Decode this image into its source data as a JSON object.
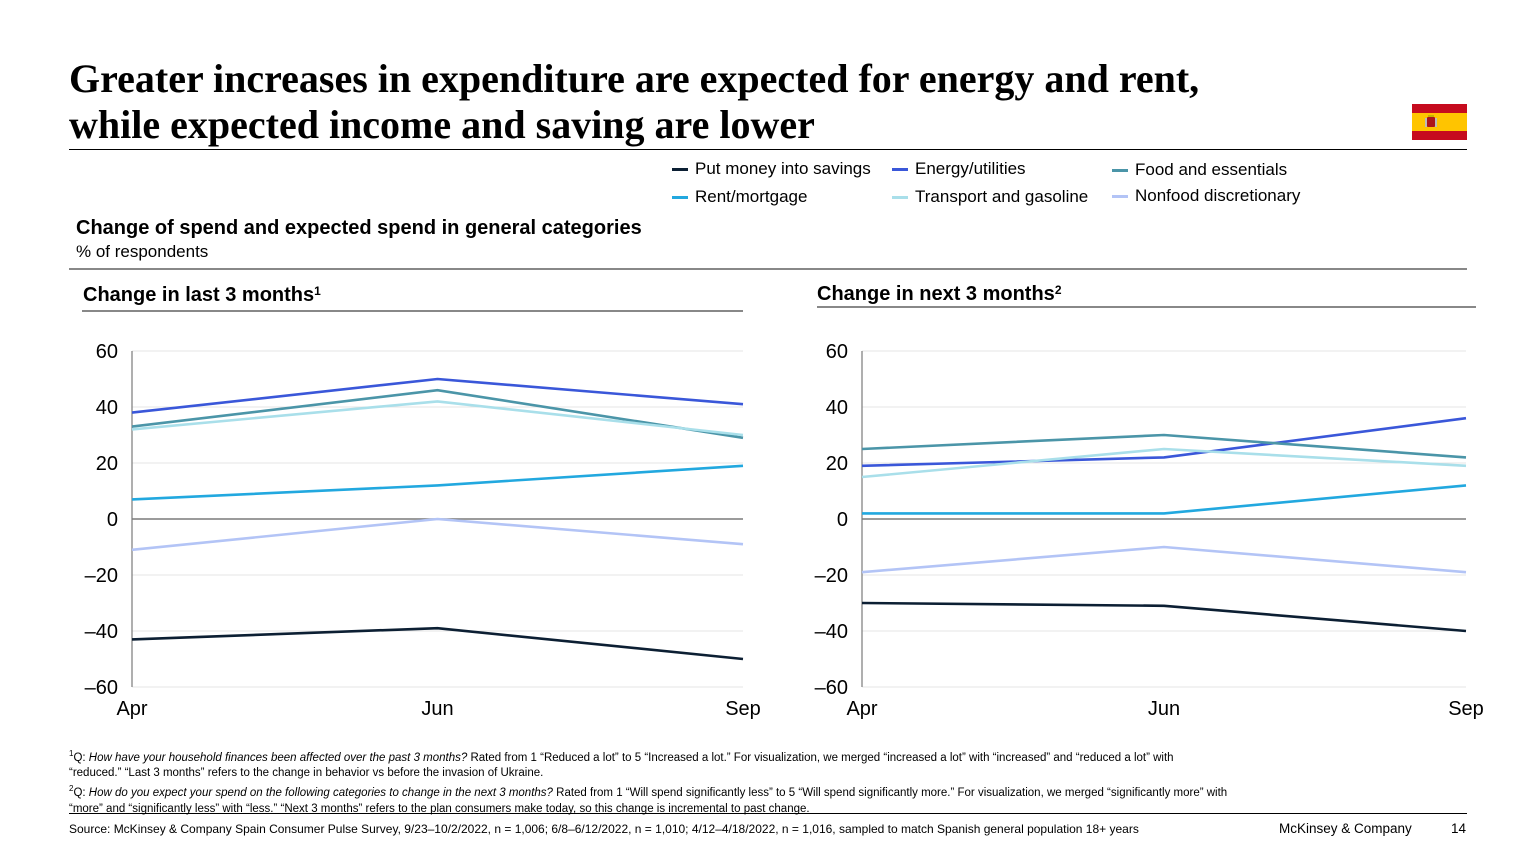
{
  "title_line1": "Greater increases in expenditure are expected for energy and rent,",
  "title_line2": "while expected income and saving are lower",
  "flag_icon": "spain-flag-icon",
  "legend": [
    {
      "label": "Put money into savings",
      "color": "#0c1f33"
    },
    {
      "label": "Energy/utilities",
      "color": "#3a57d9"
    },
    {
      "label": "Food and essentials",
      "color": "#4b95a8"
    },
    {
      "label": "Rent/mortgage",
      "color": "#22a8df"
    },
    {
      "label": "Transport and gasoline",
      "color": "#a9dfea"
    },
    {
      "label": "Nonfood discretionary",
      "color": "#b3c4f6"
    }
  ],
  "section": {
    "title": "Change of spend and expected spend in general categories",
    "subtitle": "% of respondents"
  },
  "panels": {
    "left_title": "Change in last 3 months",
    "left_sup": "1",
    "right_title": "Change in next 3 months",
    "right_sup": "2"
  },
  "chart_data": [
    {
      "type": "line",
      "title": "Change in last 3 months",
      "categories": [
        "Apr",
        "Jun",
        "Sep"
      ],
      "ylim": [
        -60,
        60
      ],
      "yticks": [
        60,
        40,
        20,
        0,
        -20,
        -40,
        -60
      ],
      "ytick_labels": [
        "60",
        "40",
        "20",
        "0",
        "–20",
        "–40",
        "–60"
      ],
      "series": [
        {
          "name": "Put money into savings",
          "values": [
            -43,
            -39,
            -50
          ],
          "color": "#0c1f33"
        },
        {
          "name": "Energy/utilities",
          "values": [
            38,
            50,
            41
          ],
          "color": "#3a57d9"
        },
        {
          "name": "Food and essentials",
          "values": [
            33,
            46,
            29
          ],
          "color": "#4b95a8"
        },
        {
          "name": "Rent/mortgage",
          "values": [
            7,
            12,
            19
          ],
          "color": "#22a8df"
        },
        {
          "name": "Transport and gasoline",
          "values": [
            32,
            42,
            30
          ],
          "color": "#a9dfea"
        },
        {
          "name": "Nonfood discretionary",
          "values": [
            -11,
            0,
            -9
          ],
          "color": "#b3c4f6"
        }
      ]
    },
    {
      "type": "line",
      "title": "Change in next 3 months",
      "categories": [
        "Apr",
        "Jun",
        "Sep"
      ],
      "ylim": [
        -60,
        60
      ],
      "yticks": [
        60,
        40,
        20,
        0,
        -20,
        -40,
        -60
      ],
      "ytick_labels": [
        "60",
        "40",
        "20",
        "0",
        "–20",
        "–40",
        "–60"
      ],
      "series": [
        {
          "name": "Put money into savings",
          "values": [
            -30,
            -31,
            -40
          ],
          "color": "#0c1f33"
        },
        {
          "name": "Energy/utilities",
          "values": [
            19,
            22,
            36
          ],
          "color": "#3a57d9"
        },
        {
          "name": "Food and essentials",
          "values": [
            25,
            30,
            22
          ],
          "color": "#4b95a8"
        },
        {
          "name": "Rent/mortgage",
          "values": [
            2,
            2,
            12
          ],
          "color": "#22a8df"
        },
        {
          "name": "Transport and gasoline",
          "values": [
            15,
            25,
            19
          ],
          "color": "#a9dfea"
        },
        {
          "name": "Nonfood discretionary",
          "values": [
            -19,
            -10,
            -19
          ],
          "color": "#b3c4f6"
        }
      ]
    }
  ],
  "footnotes": {
    "fn1_sup": "1",
    "fn1_q": "Q: ",
    "fn1_italic": "How have your household finances been affected over the past 3 months?",
    "fn1_rest": " Rated from 1 “Reduced a lot” to 5 “Increased a lot.” For visualization, we merged “increased a lot” with “increased” and “reduced a lot” with “reduced.” “Last 3 months” refers to the change in behavior vs before the invasion of Ukraine.",
    "fn2_sup": "2",
    "fn2_q": "Q: ",
    "fn2_italic": "How do you expect your spend on the following categories to change in the next 3 months?",
    "fn2_rest": " Rated from 1 “Will spend significantly less” to 5 “Will spend significantly more.” For visualization, we merged “significantly more” with “more” and “significantly less” with “less.” “Next 3 months” refers to the plan consumers make today, so this change is incremental to past change."
  },
  "source": "Source: McKinsey & Company Spain Consumer Pulse Survey, 9/23–10/2/2022, n = 1,006; 6/8–6/12/2022, n = 1,010; 4/12–4/18/2022, n = 1,016, sampled to match Spanish general population 18+ years",
  "brand": "McKinsey & Company",
  "page_number": "14"
}
